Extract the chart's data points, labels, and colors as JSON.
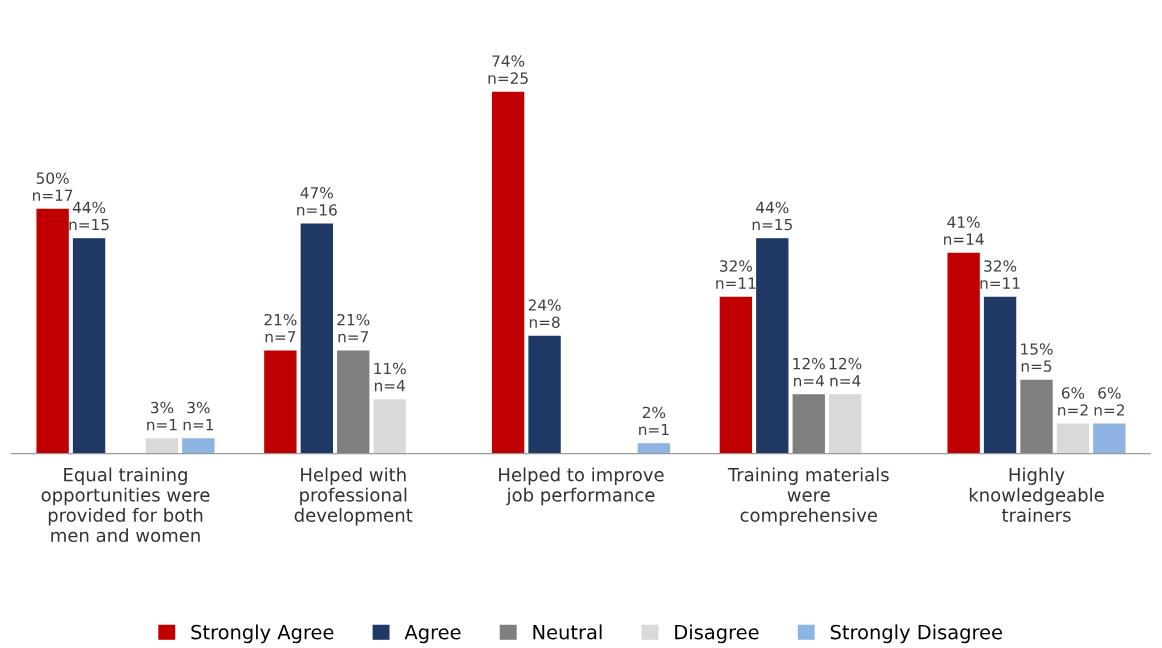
{
  "chart_data": {
    "type": "bar",
    "categories": [
      "Equal training\nopportunities were\nprovided for both\nmen and women",
      "Helped with\nprofessional\ndevelopment",
      "Helped to improve\njob performance",
      "Training materials\nwere\ncomprehensive",
      "Highly\nknowledgeable\ntrainers"
    ],
    "series": [
      {
        "name": "Strongly Agree",
        "color": "#c00000",
        "values": [
          50,
          21,
          74,
          32,
          41
        ],
        "value_labels": [
          "50%\nn=17",
          "21%\nn=7",
          "74%\nn=25",
          "32%\nn=11",
          "41%\nn=14"
        ]
      },
      {
        "name": "Agree",
        "color": "#1f3864",
        "values": [
          44,
          47,
          24,
          44,
          32
        ],
        "value_labels": [
          "44%\nn=15",
          "47%\nn=16",
          "24%\nn=8",
          "44%\nn=15",
          "32%\nn=11"
        ]
      },
      {
        "name": "Neutral",
        "color": "#7f7f7f",
        "values": [
          0,
          21,
          0,
          12,
          15
        ],
        "value_labels": [
          null,
          "21%\nn=7",
          null,
          "12%\nn=4",
          "15%\nn=5"
        ]
      },
      {
        "name": "Disagree",
        "color": "#d9d9d9",
        "values": [
          3,
          11,
          0,
          12,
          6
        ],
        "value_labels": [
          "3%\nn=1",
          "11%\nn=4",
          null,
          "12%\nn=4",
          "6%\nn=2"
        ]
      },
      {
        "name": "Strongly Disagree",
        "color": "#8db3e2",
        "values": [
          3,
          0,
          2,
          0,
          6
        ],
        "value_labels": [
          "3%\nn=1",
          null,
          "2%\nn=1",
          null,
          "6%\nn=2"
        ]
      }
    ],
    "legend": "bottom",
    "grid": false
  }
}
